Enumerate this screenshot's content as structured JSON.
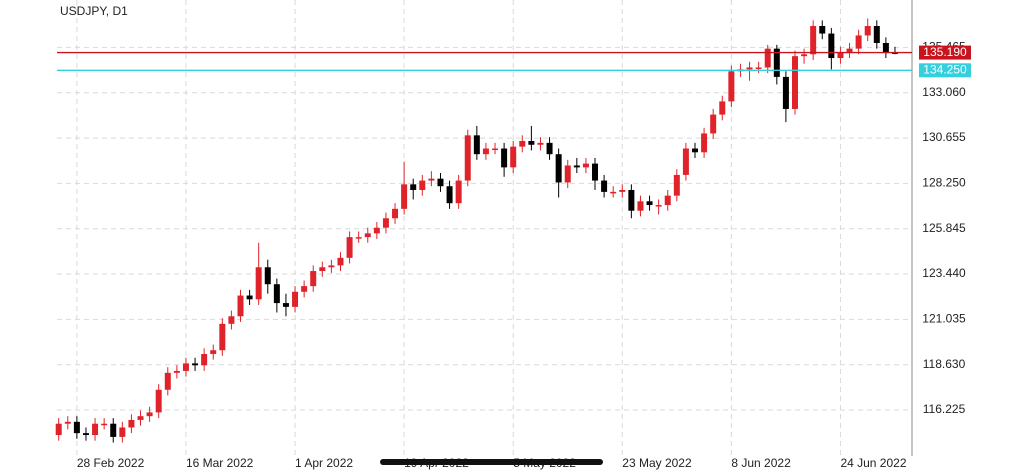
{
  "chart_data": {
    "type": "candlestick",
    "title": "USDJPY, D1",
    "categories": [
      null,
      null,
      "28 Feb 2022",
      null,
      null,
      null,
      null,
      null,
      null,
      null,
      null,
      null,
      null,
      null,
      "16 Mar 2022",
      null,
      null,
      null,
      null,
      null,
      null,
      null,
      null,
      null,
      null,
      null,
      "1 Apr 2022",
      null,
      null,
      null,
      null,
      null,
      null,
      null,
      null,
      null,
      null,
      null,
      "19 Apr 2022",
      null,
      null,
      null,
      null,
      null,
      null,
      null,
      null,
      null,
      null,
      null,
      "5 May 2022",
      null,
      null,
      null,
      null,
      null,
      null,
      null,
      null,
      null,
      null,
      null,
      "23 May 2022",
      null,
      null,
      null,
      null,
      null,
      null,
      null,
      null,
      null,
      null,
      null,
      "8 Jun 2022",
      null,
      null,
      null,
      null,
      null,
      null,
      null,
      null,
      null,
      null,
      null,
      "24 Jun 2022",
      null,
      null,
      null,
      null,
      null,
      null
    ],
    "open": [
      114.9,
      115.5,
      115.6,
      115.0,
      114.9,
      115.5,
      115.5,
      114.8,
      115.3,
      115.7,
      115.9,
      116.1,
      117.3,
      118.2,
      118.3,
      118.7,
      118.6,
      119.2,
      119.4,
      120.8,
      121.2,
      122.3,
      122.1,
      123.8,
      122.9,
      121.9,
      121.7,
      122.5,
      122.8,
      123.6,
      123.8,
      123.9,
      124.3,
      125.4,
      125.4,
      125.6,
      125.9,
      126.4,
      126.9,
      128.2,
      127.9,
      128.4,
      128.5,
      128.1,
      127.2,
      128.4,
      130.8,
      129.8,
      130.1,
      130.1,
      129.1,
      130.2,
      130.5,
      130.3,
      130.4,
      129.8,
      128.3,
      129.2,
      129.1,
      129.3,
      128.4,
      127.8,
      127.8,
      127.9,
      126.8,
      127.3,
      127.1,
      127.1,
      127.6,
      128.7,
      130.1,
      129.9,
      130.9,
      131.9,
      132.6,
      134.2,
      134.3,
      134.4,
      134.4,
      135.4,
      133.9,
      132.2,
      135.0,
      135.1,
      136.6,
      136.2,
      134.9,
      135.2,
      135.4,
      136.1,
      136.6,
      135.7,
      135.2
    ],
    "high": [
      115.8,
      115.9,
      115.9,
      115.3,
      115.8,
      115.8,
      115.8,
      115.6,
      116.0,
      116.2,
      116.4,
      117.6,
      118.5,
      118.6,
      119.0,
      119.0,
      119.5,
      119.7,
      121.1,
      121.5,
      122.6,
      122.6,
      125.1,
      124.2,
      123.2,
      122.4,
      122.8,
      123.1,
      123.9,
      124.1,
      124.2,
      124.6,
      125.7,
      125.7,
      125.9,
      126.2,
      126.7,
      127.2,
      129.4,
      128.5,
      128.7,
      128.9,
      128.8,
      128.4,
      128.7,
      131.1,
      131.3,
      130.4,
      130.4,
      130.4,
      130.5,
      130.8,
      131.3,
      130.7,
      130.7,
      130.1,
      129.5,
      129.6,
      129.6,
      129.6,
      128.7,
      128.1,
      128.2,
      128.2,
      127.6,
      127.6,
      127.4,
      127.9,
      129.0,
      130.4,
      130.4,
      131.2,
      132.2,
      132.9,
      134.5,
      134.6,
      134.7,
      134.7,
      135.6,
      135.6,
      134.2,
      135.3,
      135.4,
      136.9,
      136.9,
      136.5,
      135.5,
      135.7,
      136.4,
      137.0,
      136.9,
      136.0,
      135.5
    ],
    "low": [
      114.6,
      115.2,
      114.7,
      114.6,
      114.6,
      115.2,
      114.5,
      114.5,
      115.0,
      115.4,
      115.6,
      115.8,
      117.0,
      117.9,
      118.0,
      118.3,
      118.3,
      118.9,
      119.1,
      120.5,
      120.9,
      121.8,
      121.8,
      122.4,
      121.4,
      121.2,
      121.4,
      122.2,
      122.5,
      123.3,
      123.5,
      123.6,
      124.0,
      125.1,
      125.1,
      125.3,
      125.6,
      126.1,
      126.6,
      127.4,
      127.6,
      128.1,
      127.8,
      126.9,
      126.9,
      128.1,
      129.5,
      129.5,
      129.8,
      128.6,
      128.8,
      129.9,
      130.0,
      130.0,
      129.5,
      127.5,
      128.0,
      128.8,
      128.8,
      127.9,
      127.5,
      127.5,
      127.5,
      126.4,
      126.5,
      126.8,
      126.6,
      126.8,
      127.3,
      128.4,
      129.6,
      129.6,
      130.6,
      131.6,
      132.3,
      133.9,
      133.7,
      134.1,
      134.1,
      133.5,
      131.5,
      131.9,
      134.6,
      134.8,
      135.9,
      134.3,
      134.6,
      134.9,
      135.1,
      135.8,
      135.4,
      134.9,
      135.1
    ],
    "close": [
      115.5,
      115.6,
      115.0,
      114.9,
      115.5,
      115.5,
      114.8,
      115.3,
      115.7,
      115.9,
      116.1,
      117.3,
      118.2,
      118.3,
      118.7,
      118.6,
      119.2,
      119.4,
      120.8,
      121.2,
      122.3,
      122.1,
      123.8,
      122.9,
      121.9,
      121.7,
      122.5,
      122.8,
      123.6,
      123.8,
      123.9,
      124.3,
      125.4,
      125.4,
      125.6,
      125.9,
      126.4,
      126.9,
      128.2,
      127.9,
      128.4,
      128.5,
      128.1,
      127.2,
      128.4,
      130.8,
      129.8,
      130.1,
      130.1,
      129.1,
      130.2,
      130.5,
      130.3,
      130.4,
      129.8,
      128.3,
      129.2,
      129.1,
      129.3,
      128.4,
      127.8,
      127.8,
      127.9,
      126.8,
      127.3,
      127.1,
      127.1,
      127.6,
      128.7,
      130.1,
      129.9,
      130.9,
      131.9,
      132.6,
      134.2,
      134.3,
      134.4,
      134.4,
      135.4,
      133.9,
      132.2,
      135.0,
      135.1,
      136.6,
      136.2,
      134.9,
      135.2,
      135.4,
      136.1,
      136.6,
      135.7,
      135.2,
      135.19
    ],
    "up_color": "#e0232a",
    "down_color": "#000000",
    "ylim": [
      113.84,
      137.98
    ],
    "yticks": [
      {
        "value": 116.225,
        "label": "116.225"
      },
      {
        "value": 118.63,
        "label": "118.630"
      },
      {
        "value": 121.035,
        "label": "121.035"
      },
      {
        "value": 123.44,
        "label": "123.440"
      },
      {
        "value": 125.845,
        "label": "125.845"
      },
      {
        "value": 128.25,
        "label": "128.250"
      },
      {
        "value": 130.655,
        "label": "130.655"
      },
      {
        "value": 133.06,
        "label": "133.060"
      },
      {
        "value": 135.465,
        "label": "135.465"
      }
    ],
    "price_lines": [
      {
        "value": 135.19,
        "label": "135.190",
        "color": "#c8141c"
      },
      {
        "value": 134.25,
        "label": "134.250",
        "color": "#35d0de"
      }
    ],
    "grid": true
  }
}
